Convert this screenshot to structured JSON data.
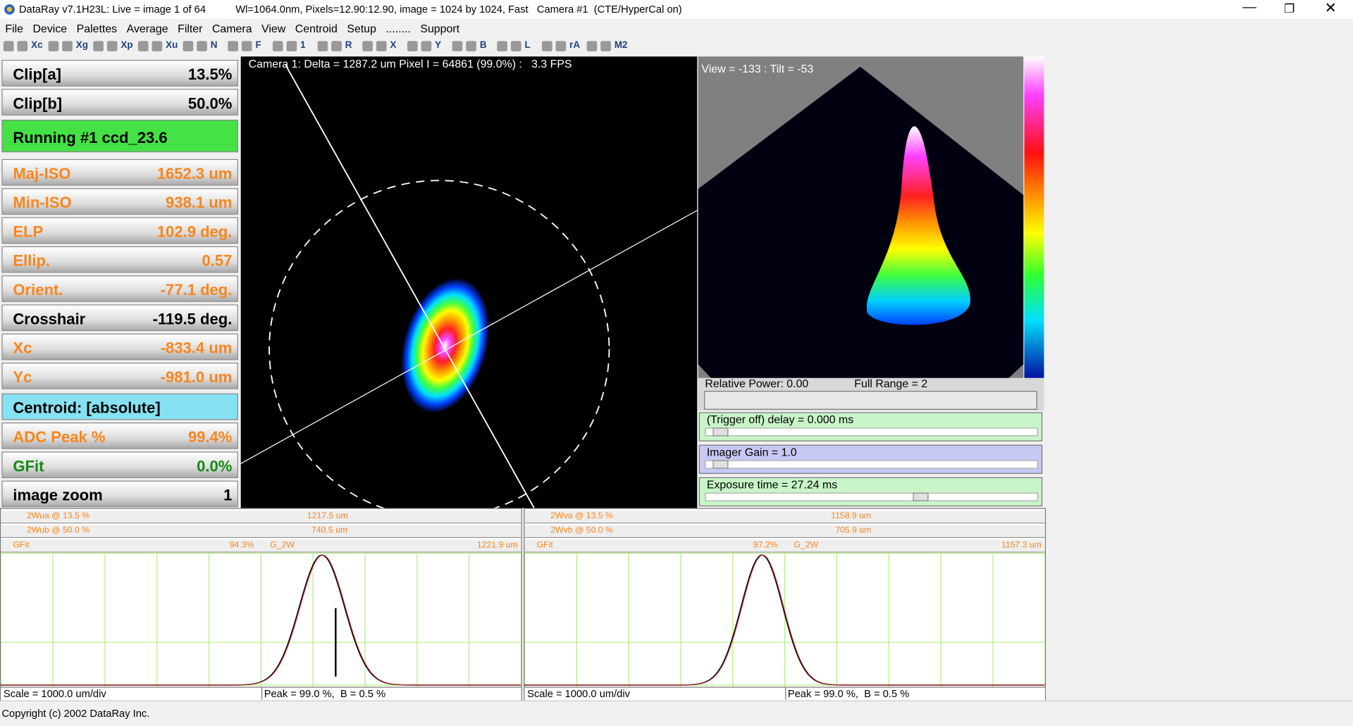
{
  "window": {
    "title": "DataRay v7.1H23L: Live = image 1 of 64",
    "info": "Wl=1064.0nm, Pixels=12.90:12.90, image = 1024 by 1024, Fast   Camera #1  (CTE/HyperCal on)"
  },
  "menu": [
    "File",
    "Device",
    "Palettes",
    "Average",
    "Filter",
    "Camera",
    "View",
    "Centroid",
    "Setup",
    "........",
    "Support"
  ],
  "toolbar": [
    "Xc",
    "Xg",
    "Xp",
    "Xu",
    "N",
    "F",
    "1",
    "R",
    "X",
    "Y",
    "B",
    "L",
    "rA",
    "M2"
  ],
  "panel": [
    {
      "label": "Clip[a]",
      "value": "13.5%",
      "color": "#000000"
    },
    {
      "label": "Clip[b]",
      "value": "50.0%",
      "color": "#000000"
    },
    {
      "label": "Running #1 ccd_23.6",
      "color": "#000000",
      "background": "#44e244"
    },
    {
      "label": "Maj-ISO",
      "value": "1652.3 um",
      "color": "#f7861e"
    },
    {
      "label": "Min-ISO",
      "value": "938.1 um",
      "color": "#f7861e"
    },
    {
      "label": "ELP",
      "value": "102.9 deg.",
      "color": "#f7861e"
    },
    {
      "label": "Ellip.",
      "value": "0.57",
      "color": "#f7861e"
    },
    {
      "label": "Orient.",
      "value": "-77.1 deg.",
      "color": "#f7861e"
    },
    {
      "label": "Crosshair",
      "value": "-119.5 deg.",
      "color": "#000000"
    },
    {
      "label": "Xc",
      "value": "-833.4 um",
      "color": "#f7861e"
    },
    {
      "label": "Yc",
      "value": "-981.0 um",
      "color": "#f7861e"
    },
    {
      "label": "Centroid: [absolute]",
      "color": "#000000",
      "background": "#86e2f2"
    },
    {
      "label": "ADC Peak %",
      "value": "99.4%",
      "color": "#f7861e"
    },
    {
      "label": "GFit",
      "value": "0.0%",
      "color": "#138a13"
    },
    {
      "label": "image zoom",
      "value": "1",
      "color": "#000000"
    }
  ],
  "camera_caption": "Camera 1: Delta = 1287.2 um Pixel I = 64861 (99.0%) :   3.3 FPS",
  "view3d": "View = -133 : Tilt = -53",
  "power": {
    "label": "Relative Power: 0.00",
    "range": "Full Range = 2"
  },
  "sliders": [
    {
      "label": "(Trigger off) delay = 0.000 ms",
      "color": "#c8f5c8"
    },
    {
      "label": "Imager Gain = 1.0",
      "color": "#c8c8f5"
    },
    {
      "label": "Exposure time = 27.24 ms",
      "color": "#c8f5c8"
    }
  ],
  "profiles": [
    {
      "wa": "2Wua @ 13.5 %",
      "wa_value": "1217.5 um",
      "wb": "2Wub @ 50.0 %",
      "wb_value": "740.5 um",
      "gfit": "GFit",
      "gfit_value": "94.3%",
      "g2w": "G_2W",
      "g2w_value": "1221.9 um",
      "scale": "Scale = 1000.0 um/div",
      "peak": "Peak = 99.0 %,  B = 0.5 %"
    },
    {
      "wa": "2Wva @ 13.5 %",
      "wa_value": "1158.9 um",
      "wb": "2Wvb @ 50.0 %",
      "wb_value": "705.9 um",
      "gfit": "GFit",
      "gfit_value": "97.2%",
      "g2w": "G_2W",
      "g2w_value": "1157.3 um",
      "scale": "Scale = 1000.0 um/div",
      "peak": "Peak = 99.0 %,  B = 0.5 %"
    }
  ],
  "status": "Copyright (c) 2002 DataRay Inc."
}
